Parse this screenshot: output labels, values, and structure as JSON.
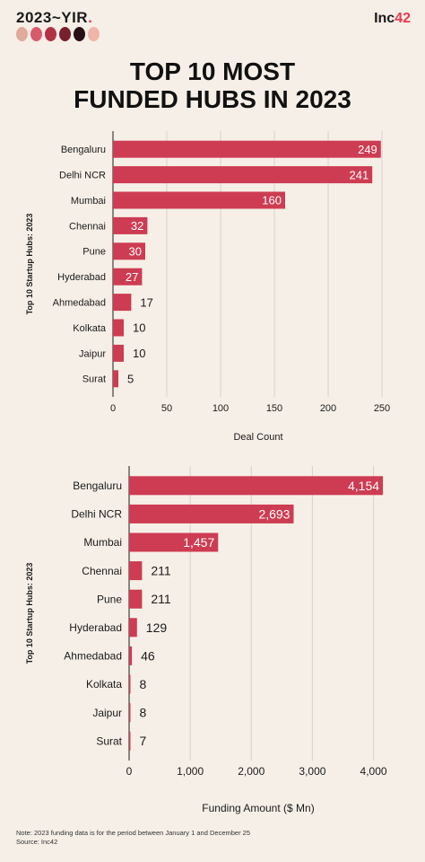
{
  "header": {
    "yir_label": "2023~YIR",
    "yir_dot": ".",
    "brand_text": "Inc",
    "brand_number": "42"
  },
  "colors": {
    "bar": "#cd3c52",
    "background": "#f6efe7",
    "grid": "#d9d2ca",
    "moons": [
      "#e0a99c",
      "#d85b6a",
      "#b23344",
      "#7a1f2c",
      "#2a1014",
      "#f0b4a8"
    ]
  },
  "title_lines": [
    "TOP 10 MOST",
    "FUNDED HUBS IN 2023"
  ],
  "chart_data": [
    {
      "type": "bar",
      "orientation": "horizontal",
      "categories": [
        "Bengaluru",
        "Delhi NCR",
        "Mumbai",
        "Chennai",
        "Pune",
        "Hyderabad",
        "Ahmedabad",
        "Kolkata",
        "Jaipur",
        "Surat"
      ],
      "values": [
        249,
        241,
        160,
        32,
        30,
        27,
        17,
        10,
        10,
        5
      ],
      "value_labels": [
        "249",
        "241",
        "160",
        "32",
        "30",
        "27",
        "17",
        "10",
        "10",
        "5"
      ],
      "xlabel": "Deal Count",
      "ylabel": "Top 10 Startup Hubs: 2023",
      "xlim": [
        0,
        250
      ],
      "xticks": [
        0,
        50,
        100,
        150,
        200,
        250
      ],
      "xtick_labels": [
        "0",
        "50",
        "100",
        "150",
        "200",
        "250"
      ],
      "grid": true
    },
    {
      "type": "bar",
      "orientation": "horizontal",
      "categories": [
        "Bengaluru",
        "Delhi NCR",
        "Mumbai",
        "Chennai",
        "Pune",
        "Hyderabad",
        "Ahmedabad",
        "Kolkata",
        "Jaipur",
        "Surat"
      ],
      "values": [
        4154,
        2693,
        1457,
        211,
        211,
        129,
        46,
        8,
        8,
        7
      ],
      "value_labels": [
        "4,154",
        "2,693",
        "1,457",
        "211",
        "211",
        "129",
        "46",
        "8",
        "8",
        "7"
      ],
      "xlabel": "Funding Amount ($ Mn)",
      "ylabel": "Top 10 Startup Hubs: 2023",
      "xlim": [
        0,
        4300
      ],
      "xticks": [
        0,
        1000,
        2000,
        3000,
        4000
      ],
      "xtick_labels": [
        "0",
        "1,000",
        "2,000",
        "3,000",
        "4,000"
      ],
      "grid": true
    }
  ],
  "footnote": {
    "note": "Note: 2023 funding data is for the period between January 1 and December 25",
    "source": "Source: Inc42"
  }
}
